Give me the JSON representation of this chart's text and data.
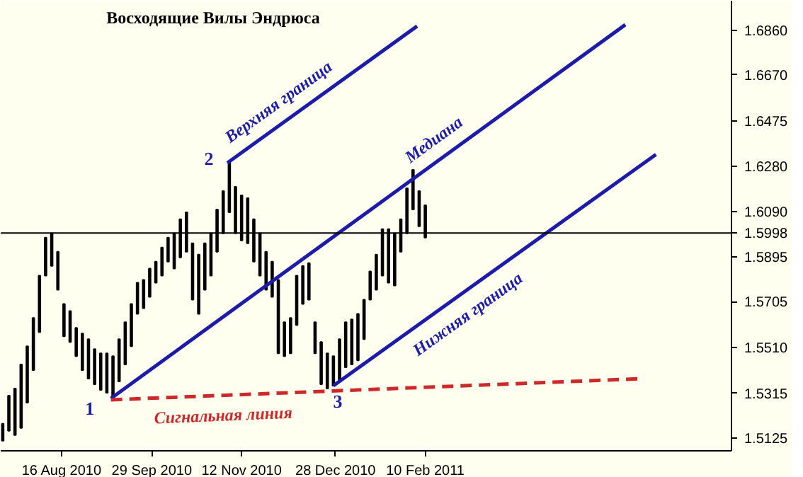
{
  "chart_data": {
    "type": "bar",
    "title": "Восходящие Вилы Эндрюса",
    "x": [
      "2010-07-18",
      "2010-07-21",
      "2010-07-24",
      "2010-07-27",
      "2010-07-30",
      "2010-08-02",
      "2010-08-05",
      "2010-08-08",
      "2010-08-11",
      "2010-08-14",
      "2010-08-17",
      "2010-08-20",
      "2010-08-23",
      "2010-08-26",
      "2010-08-29",
      "2010-09-01",
      "2010-09-04",
      "2010-09-07",
      "2010-09-10",
      "2010-09-13",
      "2010-09-16",
      "2010-09-19",
      "2010-09-22",
      "2010-09-25",
      "2010-09-28",
      "2010-10-01",
      "2010-10-04",
      "2010-10-07",
      "2010-10-10",
      "2010-10-13",
      "2010-10-16",
      "2010-10-19",
      "2010-10-22",
      "2010-10-25",
      "2010-10-28",
      "2010-10-31",
      "2010-11-03",
      "2010-11-06",
      "2010-11-09",
      "2010-11-12",
      "2010-11-15",
      "2010-11-18",
      "2010-11-21",
      "2010-11-24",
      "2010-11-27",
      "2010-11-30",
      "2010-12-03",
      "2010-12-06",
      "2010-12-09",
      "2010-12-12",
      "2010-12-15",
      "2010-12-18",
      "2010-12-21",
      "2010-12-24",
      "2010-12-27",
      "2010-12-30",
      "2011-01-02",
      "2011-01-05",
      "2011-01-08",
      "2011-01-11",
      "2011-01-14",
      "2011-01-17",
      "2011-01-20",
      "2011-01-23",
      "2011-01-26",
      "2011-01-29",
      "2011-02-01",
      "2011-02-04",
      "2011-02-07",
      "2011-02-10"
    ],
    "series": [
      {
        "color": "#000000",
        "base": [
          1.5114,
          1.5156,
          1.5138,
          1.5168,
          1.5276,
          1.5414,
          1.5576,
          1.5816,
          1.5858,
          1.5756,
          1.5558,
          1.5534,
          1.5474,
          1.5414,
          1.5378,
          1.5354,
          1.533,
          1.5318,
          1.5294,
          1.5366,
          1.5438,
          1.5516,
          1.5654,
          1.5678,
          1.5726,
          1.5786,
          1.5816,
          1.5876,
          1.5846,
          1.5894,
          1.5918,
          1.5714,
          1.5654,
          1.5756,
          1.5816,
          1.5918,
          1.5996,
          1.6086,
          1.5996,
          1.5966,
          1.5954,
          1.5876,
          1.5816,
          1.5756,
          1.5726,
          1.5486,
          1.5474,
          1.5486,
          1.5606,
          1.5696,
          1.5714,
          1.5486,
          1.5354,
          1.5336,
          1.5348,
          1.5366,
          1.5426,
          1.5438,
          1.5456,
          1.5546,
          1.5714,
          1.5756,
          1.5816,
          1.5786,
          1.5774,
          1.5918,
          1.5996,
          1.6098,
          1.6026,
          1.5978
        ],
        "values": [
          0.0072,
          0.015,
          0.0198,
          0.027,
          0.024,
          0.0222,
          0.024,
          0.0162,
          0.0138,
          0.0162,
          0.0138,
          0.0132,
          0.012,
          0.0156,
          0.0168,
          0.015,
          0.0156,
          0.0168,
          0.018,
          0.018,
          0.018,
          0.018,
          0.0132,
          0.012,
          0.012,
          0.009,
          0.012,
          0.0102,
          0.015,
          0.0162,
          0.0168,
          0.024,
          0.0252,
          0.0198,
          0.018,
          0.018,
          0.018,
          0.021,
          0.0198,
          0.0192,
          0.0192,
          0.018,
          0.018,
          0.0162,
          0.015,
          0.0312,
          0.0144,
          0.015,
          0.021,
          0.0162,
          0.0156,
          0.0132,
          0.018,
          0.015,
          0.0126,
          0.018,
          0.0192,
          0.0192,
          0.0198,
          0.0168,
          0.012,
          0.015,
          0.0198,
          0.0228,
          0.0222,
          0.0138,
          0.0192,
          0.0168,
          0.015,
          0.0138
        ]
      },
      {
        "type": "line",
        "name": "Верхняя граница",
        "color": "#1c1ca8",
        "x": [
          "2010-11-05",
          "2011-02-06"
        ],
        "values": [
          1.6296,
          1.6878
        ]
      },
      {
        "type": "line",
        "name": "Медиана",
        "color": "#1c1ca8",
        "x": [
          "2010-09-09",
          "2011-05-19"
        ],
        "values": [
          1.5294,
          1.6884
        ]
      },
      {
        "type": "line",
        "name": "Нижняя граница",
        "color": "#1c1ca8",
        "x": [
          "2010-12-27",
          "2011-06-03"
        ],
        "values": [
          1.5348,
          1.6332
        ]
      },
      {
        "type": "line",
        "name": "Сигнальная линия",
        "color": "#cc2a2a",
        "line_style": "dashed",
        "x": [
          "2010-09-09",
          "2011-05-27"
        ],
        "values": [
          1.5288,
          1.5378
        ]
      }
    ],
    "xlim": [
      "2010-07-17",
      "2011-07-10"
    ],
    "xticks": [
      {
        "value": "2010-08-16",
        "label": "16 Aug 2010"
      },
      {
        "value": "2010-09-29",
        "label": "29 Sep 2010"
      },
      {
        "value": "2010-11-12",
        "label": "12 Nov 2010"
      },
      {
        "value": "2010-12-28",
        "label": "28 Dec 2010"
      },
      {
        "value": "2011-02-10",
        "label": "10 Feb 2011"
      }
    ],
    "ylim": [
      1.5071,
      1.6986
    ],
    "yticks": [
      1.5125,
      1.5315,
      {
        "value": 1.551,
        "label": "1.5510"
      },
      1.5705,
      1.5895,
      {
        "value": 1.609,
        "label": "1.6090"
      },
      {
        "value": 1.628,
        "label": "1.6280"
      },
      1.6475,
      {
        "value": 1.667,
        "label": "1.6670"
      },
      {
        "value": 1.686,
        "label": "1.6860"
      }
    ],
    "ref_lines": [
      {
        "axis": "y",
        "value": 1.5998,
        "label": "1.5998",
        "color": "#000000"
      }
    ],
    "annotations": [
      {
        "text": "1",
        "x": "2010-09-09",
        "y": 1.5294
      },
      {
        "text": "2",
        "x": "2010-11-05",
        "y": 1.6296
      },
      {
        "text": "3",
        "x": "2010-12-27",
        "y": 1.5348
      }
    ],
    "grid": false
  }
}
